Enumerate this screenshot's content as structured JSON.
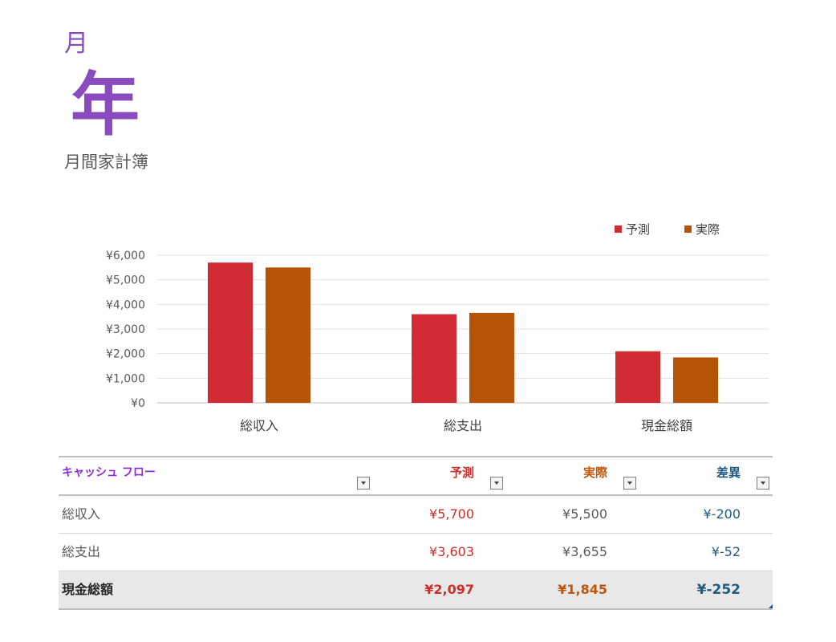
{
  "header": {
    "month": "月",
    "year": "年",
    "subtitle": "月間家計簿"
  },
  "chart_data": {
    "type": "bar",
    "categories": [
      "総収入",
      "総支出",
      "現金総額"
    ],
    "series": [
      {
        "name": "予測",
        "color": "#d12b33",
        "values": [
          5700,
          3603,
          2097
        ]
      },
      {
        "name": "実際",
        "color": "#b55406",
        "values": [
          5500,
          3655,
          1845
        ]
      }
    ],
    "ylim": [
      0,
      6000
    ],
    "yticks": [
      0,
      1000,
      2000,
      3000,
      4000,
      5000,
      6000
    ],
    "ytick_labels": [
      "¥0",
      "¥1,000",
      "¥2,000",
      "¥3,000",
      "¥4,000",
      "¥5,000",
      "¥6,000"
    ],
    "grid": true,
    "legend_position": "top-right"
  },
  "table": {
    "columns": {
      "label": "キャッシュ フロー",
      "forecast": "予測",
      "actual": "実際",
      "difference": "差異"
    },
    "rows": [
      {
        "label": "総収入",
        "forecast": "¥5,700",
        "actual": "¥5,500",
        "difference": "¥-200"
      },
      {
        "label": "総支出",
        "forecast": "¥3,603",
        "actual": "¥3,655",
        "difference": "¥-52"
      }
    ],
    "total": {
      "label": "現金総額",
      "forecast": "¥2,097",
      "actual": "¥1,845",
      "difference": "¥-252"
    }
  }
}
